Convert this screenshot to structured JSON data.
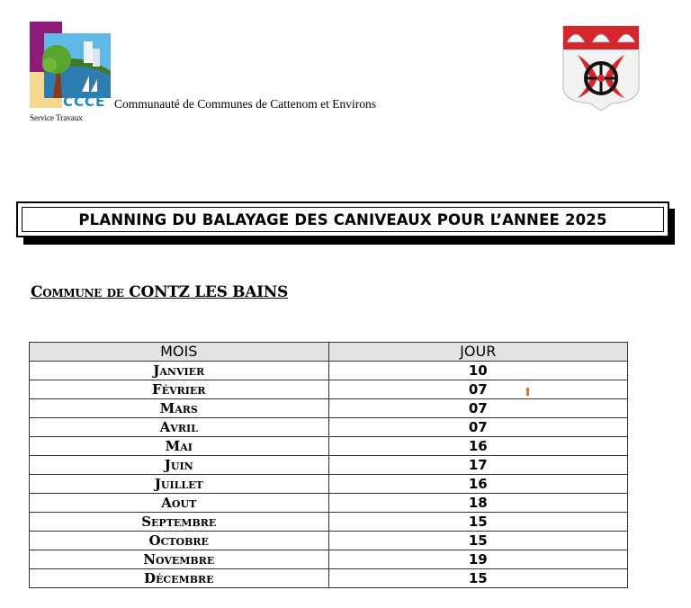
{
  "header": {
    "logo_text": "CCCE",
    "organization": "Communauté de Communes de Cattenom et Environs",
    "service": "Service Travaux"
  },
  "title": "PLANNING DU BALAYAGE DES CANIVEAUX POUR L’ANNEE 2025",
  "commune": "Commune de CONTZ LES BAINS",
  "table": {
    "headers": [
      "MOIS",
      "JOUR"
    ],
    "rows": [
      {
        "mois": "Janvier",
        "jour": "10"
      },
      {
        "mois": "Février",
        "jour": "07"
      },
      {
        "mois": "Mars",
        "jour": "07"
      },
      {
        "mois": "Avril",
        "jour": "07"
      },
      {
        "mois": "Mai",
        "jour": "16"
      },
      {
        "mois": "Juin",
        "jour": "17"
      },
      {
        "mois": "Juillet",
        "jour": "16"
      },
      {
        "mois": "Aout",
        "jour": "18"
      },
      {
        "mois": "Septembre",
        "jour": "15"
      },
      {
        "mois": "Octobre",
        "jour": "15"
      },
      {
        "mois": "Novembre",
        "jour": "19"
      },
      {
        "mois": "Décembre",
        "jour": "15"
      }
    ]
  }
}
